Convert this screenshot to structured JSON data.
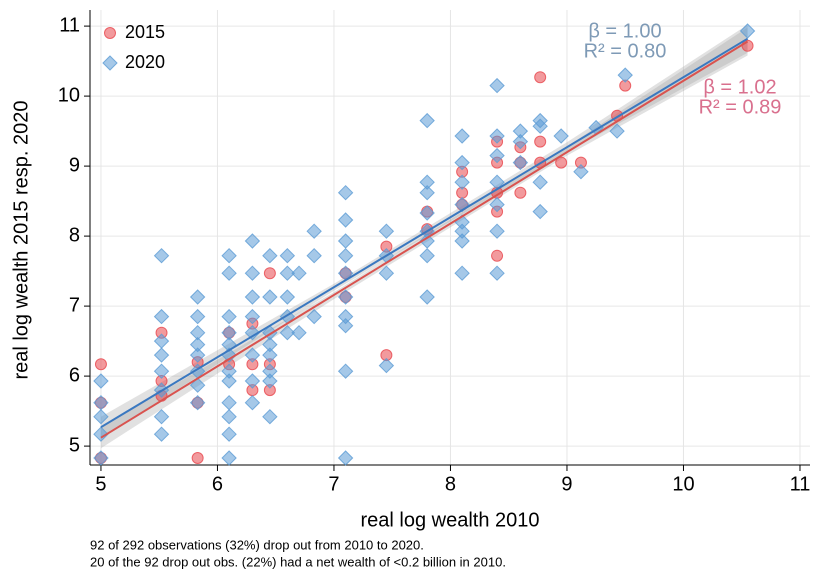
{
  "chart_data": {
    "type": "scatter",
    "xlabel": "real log wealth 2010",
    "ylabel": "real log wealth 2015 resp. 2020",
    "xlim": [
      4.906,
      11.086
    ],
    "ylim": [
      4.73,
      11.23
    ],
    "xticks": [
      5,
      6,
      7,
      8,
      9,
      10,
      11
    ],
    "yticks": [
      5,
      6,
      7,
      8,
      9,
      10,
      11
    ],
    "grid": true,
    "legend": "top-left",
    "notes": [
      "92 of 292 observations (32%) drop out from 2010 to 2020.",
      "20 of the 92 drop out obs. (22%) had a net wealth of <0.2 billion in 2010."
    ],
    "series": [
      {
        "name": "2015",
        "color": "#e8474d",
        "marker": "circle",
        "line_color": "#d9534f",
        "annotation_color": "#d9708e",
        "annotations": [
          "β = 1.02",
          "R² = 0.89"
        ],
        "x": [
          5,
          5,
          5,
          5.52,
          5.52,
          5.52,
          5.83,
          5.83,
          5.83,
          6.1,
          6.1,
          6.3,
          6.3,
          6.3,
          6.45,
          6.45,
          6.45,
          7.1,
          7.1,
          7.45,
          7.45,
          7.8,
          7.8,
          8.1,
          8.1,
          8.1,
          8.4,
          8.4,
          8.4,
          8.4,
          8.4,
          8.6,
          8.6,
          8.6,
          8.77,
          8.77,
          8.77,
          8.95,
          9.12,
          9.43,
          9.5,
          10.55
        ],
        "values": [
          6.17,
          5.62,
          4.83,
          6.62,
          5.93,
          5.72,
          5.62,
          4.83,
          6.2,
          6.62,
          6.17,
          6.75,
          6.17,
          5.8,
          7.47,
          6.17,
          5.8,
          7.47,
          7.13,
          6.3,
          7.85,
          8.35,
          8.1,
          8.92,
          8.62,
          8.45,
          9.35,
          9.05,
          8.62,
          8.35,
          7.72,
          9.27,
          8.62,
          9.05,
          10.27,
          9.35,
          9.05,
          9.05,
          9.05,
          9.72,
          10.15,
          10.72
        ],
        "fit": {
          "x": [
            5,
            10.55
          ],
          "values": [
            5.12,
            10.78
          ]
        },
        "ci": {
          "x": [
            5,
            7,
            9,
            10.55
          ],
          "lower": [
            4.97,
            7.1,
            9.15,
            10.58
          ],
          "upper": [
            5.27,
            7.2,
            9.28,
            10.98
          ]
        }
      },
      {
        "name": "2020",
        "color": "#5b9bd5",
        "marker": "diamond",
        "line_color": "#3a78c0",
        "annotation_color": "#7e9ab6",
        "annotations": [
          "β = 1.00",
          "R² = 0.80"
        ],
        "x": [
          5,
          5,
          5,
          5,
          5,
          5.52,
          5.52,
          5.52,
          5.52,
          5.52,
          5.52,
          5.52,
          5.52,
          5.83,
          5.83,
          5.83,
          5.83,
          5.83,
          5.83,
          5.83,
          5.83,
          6.1,
          6.1,
          6.1,
          6.1,
          6.1,
          6.1,
          6.1,
          6.1,
          6.1,
          6.1,
          6.1,
          6.1,
          6.3,
          6.3,
          6.3,
          6.3,
          6.3,
          6.3,
          6.3,
          6.3,
          6.45,
          6.45,
          6.45,
          6.45,
          6.45,
          6.45,
          6.45,
          6.45,
          6.6,
          6.6,
          6.6,
          6.6,
          6.6,
          6.7,
          6.7,
          6.83,
          6.83,
          6.83,
          7.1,
          7.1,
          7.1,
          7.1,
          7.1,
          7.1,
          7.1,
          7.1,
          7.1,
          7.1,
          7.45,
          7.45,
          7.45,
          7.45,
          7.8,
          7.8,
          7.8,
          7.8,
          7.8,
          7.8,
          7.8,
          7.8,
          8.1,
          8.1,
          8.1,
          8.1,
          8.1,
          8.1,
          8.1,
          8.1,
          8.4,
          8.4,
          8.4,
          8.4,
          8.4,
          8.4,
          8.4,
          8.6,
          8.6,
          8.6,
          8.77,
          8.77,
          8.77,
          8.77,
          8.95,
          9.12,
          9.25,
          9.43,
          9.5,
          10.55
        ],
        "values": [
          4.83,
          5.17,
          5.42,
          5.62,
          5.93,
          7.72,
          6.85,
          6.3,
          6.07,
          5.8,
          5.42,
          5.17,
          6.5,
          7.13,
          6.85,
          6.62,
          6.3,
          6.07,
          5.87,
          5.62,
          6.45,
          7.72,
          7.47,
          6.85,
          6.62,
          6.45,
          6.3,
          6.07,
          5.93,
          5.62,
          5.42,
          5.17,
          4.83,
          7.93,
          7.47,
          6.85,
          6.62,
          6.3,
          5.93,
          5.62,
          7.13,
          7.72,
          7.13,
          6.62,
          6.3,
          6.07,
          5.93,
          5.42,
          6.45,
          7.72,
          7.47,
          7.13,
          6.85,
          6.62,
          7.47,
          6.62,
          8.07,
          7.72,
          6.85,
          8.62,
          8.23,
          7.93,
          7.72,
          7.47,
          7.13,
          6.85,
          6.72,
          6.07,
          4.83,
          8.07,
          7.72,
          7.47,
          6.15,
          9.65,
          8.77,
          8.62,
          8.33,
          8.07,
          7.93,
          7.72,
          7.13,
          9.43,
          9.05,
          8.77,
          8.45,
          8.07,
          7.93,
          7.47,
          8.2,
          10.15,
          9.43,
          9.15,
          8.77,
          8.45,
          8.07,
          7.47,
          9.5,
          9.35,
          9.05,
          9.65,
          9.57,
          8.77,
          8.35,
          9.43,
          8.92,
          9.55,
          9.5,
          10.3,
          10.93
        ],
        "fit": {
          "x": [
            5,
            10.55
          ],
          "values": [
            5.27,
            10.82
          ]
        },
        "ci": {
          "x": [
            5,
            7,
            9,
            10.55
          ],
          "lower": [
            5.12,
            7.22,
            9.2,
            10.62
          ],
          "upper": [
            5.42,
            7.32,
            9.34,
            11.02
          ]
        }
      }
    ]
  }
}
